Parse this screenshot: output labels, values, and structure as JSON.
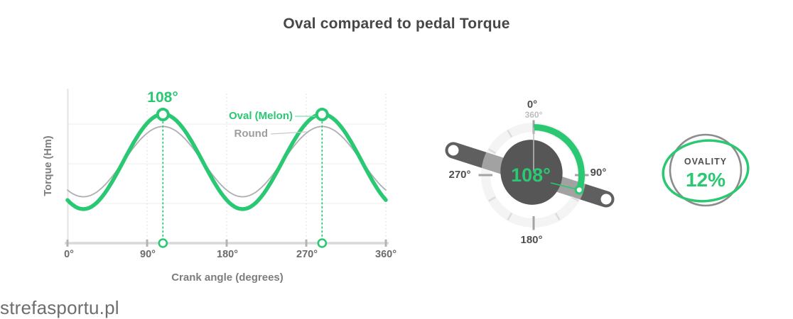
{
  "title": "Oval compared to pedal Torque",
  "watermark": "strefasportu.pl",
  "colors": {
    "green": "#2BC873",
    "round_gray": "#AFAFAF",
    "dark_gray": "#5A5A5A"
  },
  "chart": {
    "ylabel": "Torque (Hm)",
    "xlabel": "Crank angle (degrees)",
    "peak_label": "108°",
    "x_tick_labels": [
      "0°",
      "90°",
      "180°",
      "270°",
      "360°"
    ],
    "legend": {
      "oval": "Oval (Melon)",
      "round": "Round"
    }
  },
  "chart_data": {
    "type": "line",
    "title": "Oval compared to pedal Torque",
    "xlabel": "Crank angle (degrees)",
    "ylabel": "Torque (Hm)",
    "x_range": [
      0,
      360
    ],
    "x_ticks": [
      0,
      90,
      180,
      270,
      360
    ],
    "grid": true,
    "legend_position": "inside-right",
    "period_deg": 180,
    "peak_angle_deg": 108,
    "marked_peaks_deg": [
      108,
      288
    ],
    "series": [
      {
        "name": "Oval (Melon)",
        "color": "#2BC873",
        "rel_amplitude": 1.35,
        "peak_angle_deg": 108
      },
      {
        "name": "Round",
        "color": "#AFAFAF",
        "rel_amplitude": 1.0,
        "peak_angle_deg": 108
      }
    ],
    "samples": {
      "x": [
        0,
        15,
        30,
        45,
        60,
        75,
        90,
        105,
        120,
        135,
        150,
        165,
        180,
        195,
        210,
        225,
        240,
        255,
        270,
        285,
        300,
        315,
        330,
        345,
        360
      ],
      "oval": [
        -1.092,
        -1.343,
        -1.234,
        -0.794,
        -0.142,
        0.549,
        1.092,
        1.343,
        1.234,
        0.794,
        0.142,
        -0.549,
        -1.092,
        -1.343,
        -1.234,
        -0.794,
        -0.142,
        0.549,
        1.092,
        1.343,
        1.234,
        0.794,
        0.142,
        -0.549,
        -1.092
      ],
      "round": [
        -0.809,
        -0.995,
        -0.914,
        -0.588,
        -0.105,
        0.407,
        0.809,
        0.995,
        0.914,
        0.588,
        0.105,
        -0.407,
        -0.809,
        -0.995,
        -0.914,
        -0.588,
        -0.105,
        0.407,
        0.809,
        0.995,
        0.914,
        0.588,
        0.105,
        -0.407,
        -0.809
      ]
    }
  },
  "dial": {
    "label_top": "0°",
    "label_top_sub": "360°",
    "label_right": "90°",
    "label_bottom": "180°",
    "label_left": "270°",
    "center_value": "108°",
    "arc_start_deg": 0,
    "arc_end_deg": 108,
    "tick_step_deg": 30
  },
  "ovality": {
    "label": "OVALITY",
    "value": "12%"
  }
}
